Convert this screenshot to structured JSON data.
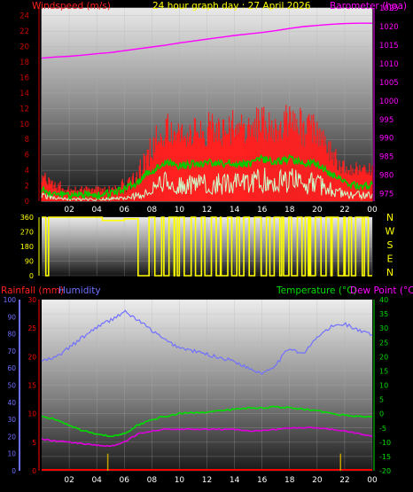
{
  "header": {
    "left_label": "Windspeed (m/s)",
    "title": "24 hour graph day : 27 April 2026",
    "right_label": "Barometer (hpa)"
  },
  "colors": {
    "wind": "#ff0000",
    "gust": "#ff2020",
    "avg": "#00cc00",
    "light": "#ccffcc",
    "baro": "#ff00ff",
    "yellow": "#ffff00",
    "humidity": "#7070ff",
    "temp": "#00dd00",
    "dew": "#dd00dd",
    "rain": "#ff0000",
    "bar": "#c0a000",
    "axisLeft": "#cc0000"
  },
  "chart_data": [
    {
      "type": "line",
      "name": "wind-barometer",
      "x_ticks": [
        "02",
        "04",
        "06",
        "08",
        "10",
        "12",
        "14",
        "16",
        "18",
        "20",
        "22",
        "00"
      ],
      "y_left": {
        "label": "Windspeed (m/s)",
        "ticks": [
          0,
          2,
          4,
          6,
          8,
          10,
          12,
          14,
          16,
          18,
          20,
          22,
          24
        ],
        "range": [
          0,
          25
        ]
      },
      "y_right": {
        "label": "Barometer (hpa)",
        "ticks": [
          975,
          980,
          985,
          990,
          995,
          1000,
          1005,
          1010,
          1015,
          1020,
          1025
        ],
        "range": [
          973,
          1025
        ]
      },
      "hours": [
        0,
        1,
        2,
        3,
        4,
        5,
        6,
        7,
        8,
        9,
        10,
        11,
        12,
        13,
        14,
        15,
        16,
        17,
        18,
        19,
        20,
        21,
        22,
        23,
        24
      ],
      "gust_peak": [
        4,
        3,
        2,
        2,
        2,
        2,
        3,
        5,
        9,
        12,
        10,
        11,
        12,
        11,
        12,
        11,
        13,
        12,
        13,
        12,
        11,
        8,
        6,
        5,
        5
      ],
      "gust_base": [
        2,
        1,
        1,
        1,
        1,
        1,
        1,
        2,
        5,
        7,
        7,
        7,
        7,
        7,
        7,
        7,
        8,
        7,
        8,
        7,
        7,
        5,
        3,
        3,
        3
      ],
      "wind_avg": [
        1.5,
        1,
        0.8,
        0.8,
        0.8,
        1,
        1.5,
        2.5,
        4,
        5,
        4.5,
        4.8,
        5,
        4.8,
        5,
        4.7,
        5.5,
        5,
        5.5,
        5,
        4.8,
        3.5,
        2.5,
        2,
        2
      ],
      "wind_light": [
        1,
        0.5,
        0.3,
        0.3,
        0.3,
        0.4,
        0.5,
        1,
        2,
        3,
        2.5,
        2.8,
        3,
        2.8,
        3,
        2.7,
        3.5,
        3,
        3.5,
        3,
        2.8,
        2,
        1,
        1,
        1
      ],
      "barometer": [
        1011.5,
        1011.8,
        1012,
        1012.3,
        1012.7,
        1013,
        1013.5,
        1014,
        1014.5,
        1015,
        1015.6,
        1016.1,
        1016.6,
        1017.1,
        1017.6,
        1018,
        1018.4,
        1018.9,
        1019.5,
        1020,
        1020.3,
        1020.6,
        1020.8,
        1020.9,
        1020.9
      ]
    },
    {
      "type": "line",
      "name": "wind-direction",
      "y_ticks": [
        0,
        90,
        180,
        270,
        360
      ],
      "compass": [
        "N",
        "W",
        "S",
        "E",
        "N"
      ],
      "segments": [
        {
          "from": 0,
          "to": 0.3,
          "value": 360
        },
        {
          "from": 0.3,
          "to": 0.5,
          "value": 0
        },
        {
          "from": 0.5,
          "to": 4.4,
          "value": 360
        },
        {
          "from": 4.4,
          "to": 6,
          "value": 340
        },
        {
          "from": 6,
          "to": 7,
          "value": 350
        },
        {
          "from": 7,
          "to": 7.8,
          "value": 0
        }
      ],
      "oscillation_start": 7.8,
      "oscillation_end": 24
    },
    {
      "type": "line",
      "name": "temp-humidity-rain",
      "labels": {
        "rainfall": "Rainfall (mm)",
        "humidity": "Humidity",
        "temperature": "Temperature (°C)",
        "dewpoint": "Dew Point (°C)"
      },
      "x_ticks": [
        "02",
        "04",
        "06",
        "08",
        "10",
        "12",
        "14",
        "16",
        "18",
        "20",
        "22",
        "00"
      ],
      "y_humidity": {
        "ticks": [
          0,
          10,
          20,
          30,
          40,
          50,
          60,
          70,
          80,
          90,
          100
        ],
        "range": [
          0,
          100
        ]
      },
      "y_rain": {
        "ticks": [
          0,
          5,
          10,
          15,
          20,
          25,
          30
        ],
        "range": [
          0,
          30
        ]
      },
      "y_temp": {
        "ticks": [
          -20,
          -15,
          -10,
          -5,
          0,
          5,
          10,
          15,
          20,
          25,
          30,
          35,
          40
        ],
        "range": [
          -20,
          40
        ]
      },
      "hours": [
        0,
        1,
        2,
        3,
        4,
        5,
        6,
        7,
        8,
        9,
        10,
        11,
        12,
        13,
        14,
        15,
        16,
        17,
        18,
        19,
        20,
        21,
        22,
        23,
        24
      ],
      "humidity": [
        64,
        66,
        72,
        78,
        84,
        88,
        93,
        88,
        82,
        76,
        72,
        70,
        68,
        66,
        64,
        60,
        57,
        62,
        72,
        68,
        78,
        84,
        86,
        82,
        79
      ],
      "temperature": [
        -1,
        -2,
        -4,
        -6,
        -7,
        -8,
        -7,
        -4,
        -2,
        -1,
        0,
        0.5,
        0.5,
        1,
        1.5,
        2,
        2,
        2.5,
        2,
        1.5,
        1,
        0,
        -0.5,
        -1,
        -1
      ],
      "dewpoint": [
        -9,
        -9.5,
        -10,
        -10.5,
        -11,
        -11.5,
        -10,
        -7,
        -6,
        -5.5,
        -5.5,
        -5.5,
        -5.5,
        -5.5,
        -5.5,
        -6,
        -6,
        -5.5,
        -5,
        -5,
        -5,
        -5.5,
        -6,
        -7,
        -8
      ],
      "rain_events": [
        {
          "hour": 4.8,
          "value": 3
        },
        {
          "hour": 21.7,
          "value": 3
        }
      ],
      "rainfall_total": 0
    }
  ]
}
